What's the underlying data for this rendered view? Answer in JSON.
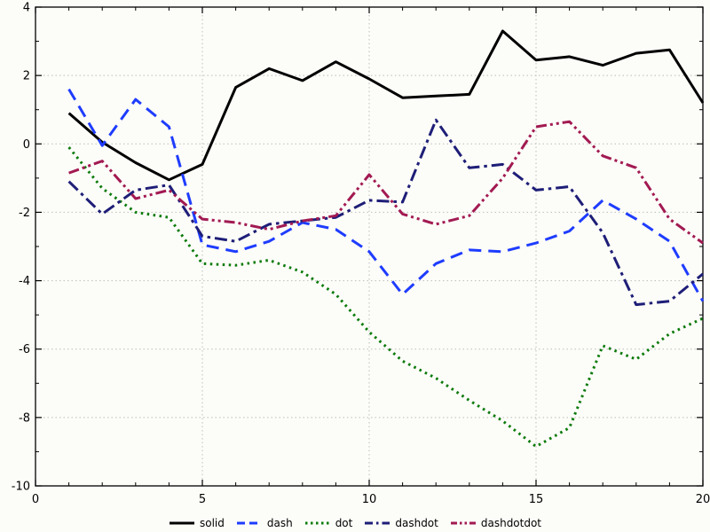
{
  "page": {
    "background": "#fcfcf8"
  },
  "chart_data": {
    "type": "line",
    "title": "",
    "xlabel": "",
    "ylabel": "",
    "xlim": [
      0,
      20
    ],
    "ylim": [
      -10,
      4
    ],
    "xticks": [
      0,
      5,
      10,
      15,
      20
    ],
    "yticks": [
      -10,
      -8,
      -6,
      -4,
      -2,
      0,
      2,
      4
    ],
    "x_minor_step": 1,
    "y_minor_step": 1,
    "grid": true,
    "grid_color": "#bdbdbd",
    "axis_color": "#000000",
    "legend_position": "bottom-center",
    "line_width": 3,
    "x": [
      1,
      2,
      3,
      4,
      5,
      6,
      7,
      8,
      9,
      10,
      11,
      12,
      13,
      14,
      15,
      16,
      17,
      18,
      19,
      20
    ],
    "series": [
      {
        "name": "solid",
        "color": "#000000",
        "dash": "solid",
        "values": [
          0.9,
          0.05,
          -0.55,
          -1.05,
          -0.6,
          1.65,
          2.2,
          1.85,
          2.4,
          1.9,
          1.35,
          1.4,
          1.45,
          3.3,
          2.45,
          2.55,
          2.3,
          2.65,
          2.75,
          1.2
        ]
      },
      {
        "name": "dash",
        "color": "#1e3cff",
        "dash": "dash",
        "values": [
          1.6,
          -0.05,
          1.3,
          0.5,
          -2.95,
          -3.15,
          -2.85,
          -2.3,
          -2.5,
          -3.15,
          -4.4,
          -3.5,
          -3.1,
          -3.15,
          -2.9,
          -2.55,
          -1.65,
          -2.2,
          -2.85,
          -4.6
        ]
      },
      {
        "name": "dot",
        "color": "#0a7a0a",
        "dash": "dot",
        "values": [
          -0.1,
          -1.3,
          -2.0,
          -2.15,
          -3.5,
          -3.55,
          -3.4,
          -3.75,
          -4.4,
          -5.5,
          -6.35,
          -6.85,
          -7.5,
          -8.1,
          -8.85,
          -8.3,
          -5.9,
          -6.3,
          -5.55,
          -5.1
        ]
      },
      {
        "name": "dashdot",
        "color": "#1e1e78",
        "dash": "dashdot",
        "values": [
          -1.1,
          -2.05,
          -1.35,
          -1.2,
          -2.7,
          -2.85,
          -2.35,
          -2.25,
          -2.15,
          -1.65,
          -1.7,
          0.7,
          -0.7,
          -0.6,
          -1.35,
          -1.25,
          -2.6,
          -4.7,
          -4.6,
          -3.8
        ]
      },
      {
        "name": "dashdotdot",
        "color": "#a21a52",
        "dash": "dashdotdot",
        "values": [
          -0.85,
          -0.5,
          -1.6,
          -1.35,
          -2.2,
          -2.3,
          -2.5,
          -2.25,
          -2.1,
          -0.9,
          -2.05,
          -2.35,
          -2.1,
          -1.0,
          0.5,
          0.65,
          -0.35,
          -0.7,
          -2.2,
          -2.9
        ]
      }
    ]
  }
}
